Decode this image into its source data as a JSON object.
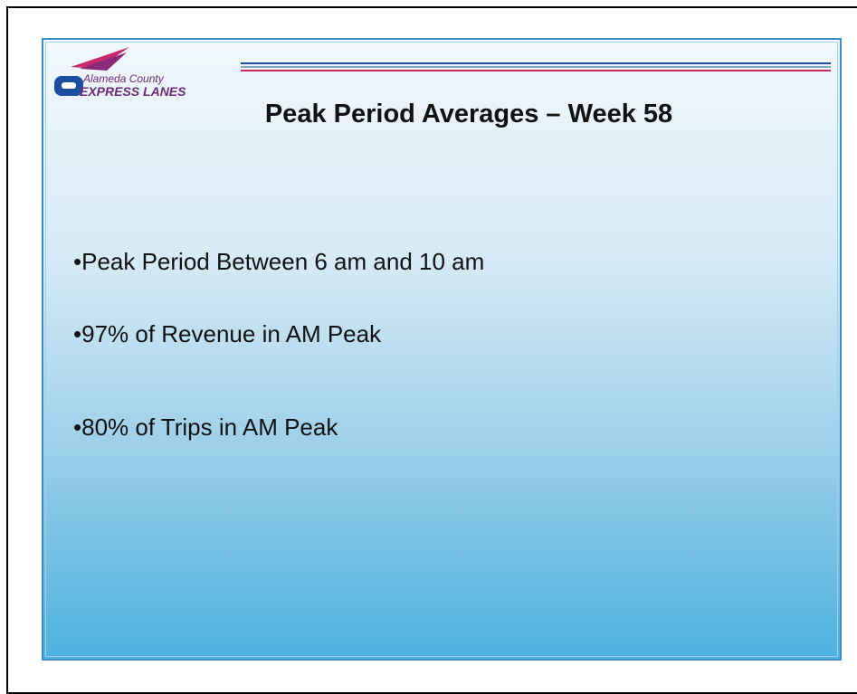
{
  "logo": {
    "line1": "Alameda County",
    "line2": "EXPRESS LANES"
  },
  "slide": {
    "title": "Peak Period Averages – Week 58",
    "bullets": [
      "•Peak Period Between 6 am and 10 am",
      "•97% of Revenue in AM Peak",
      "•80% of Trips in AM Peak"
    ]
  }
}
